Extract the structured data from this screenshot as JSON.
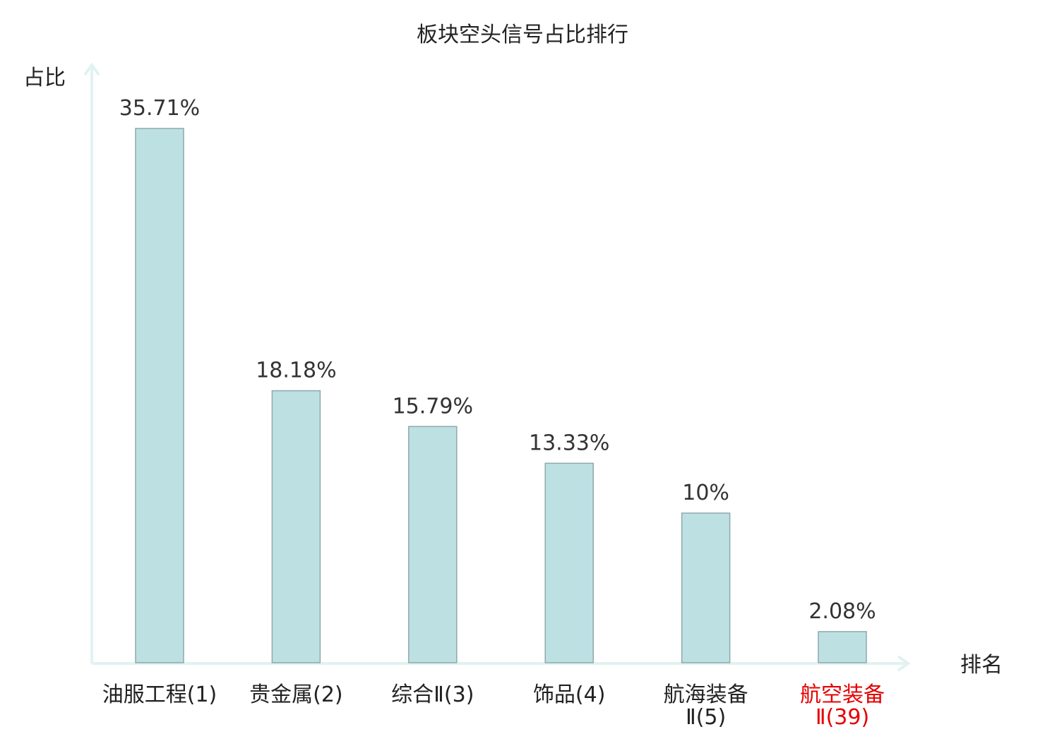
{
  "chart_data": {
    "type": "bar",
    "title": "板块空头信号占比排行",
    "xlabel": "排名",
    "ylabel": "占比",
    "ylim": [
      0,
      40
    ],
    "grid": false,
    "categories": [
      [
        "油服工程(1)"
      ],
      [
        "贵金属(2)"
      ],
      [
        "综合Ⅱ(3)"
      ],
      [
        "饰品(4)"
      ],
      [
        "航海装备",
        "Ⅱ(5)"
      ],
      [
        "航空装备",
        "Ⅱ(39)"
      ]
    ],
    "values": [
      35.71,
      18.18,
      15.79,
      13.33,
      10,
      2.08
    ],
    "value_labels": [
      "35.71%",
      "18.18%",
      "15.79%",
      "13.33%",
      "10%",
      "2.08%"
    ],
    "highlight_index": 5
  },
  "colors": {
    "bar_fill": "#bde0e3",
    "bar_stroke": "#8fa9ab",
    "axis": "#e0f2f1",
    "text": "#333333",
    "highlight": "#e60000"
  }
}
